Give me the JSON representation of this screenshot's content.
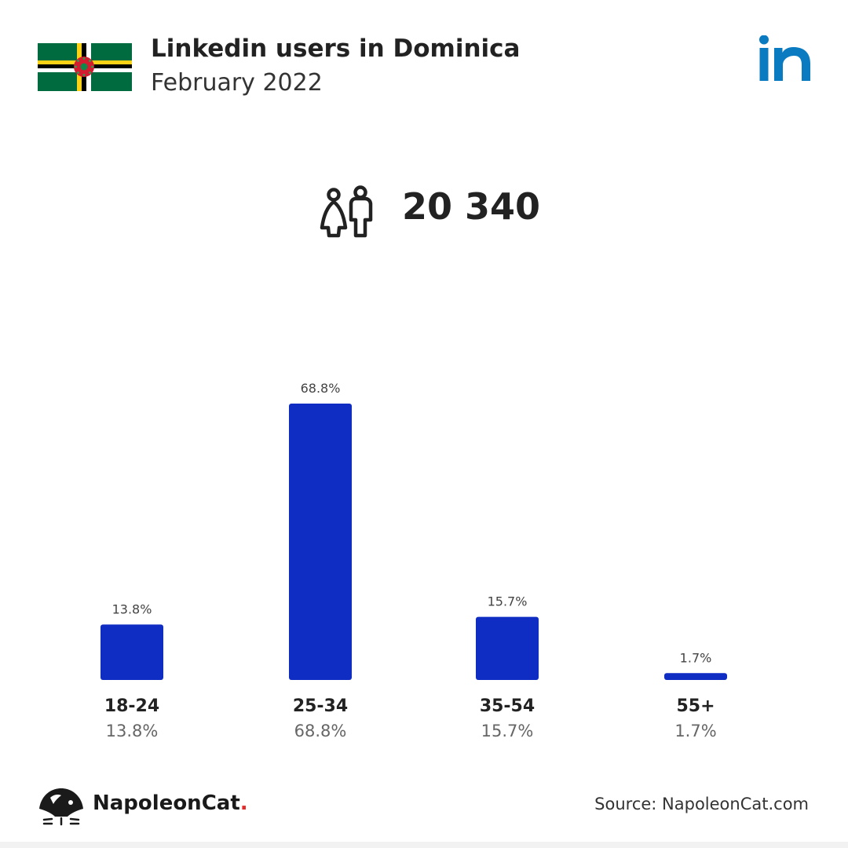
{
  "header": {
    "title": "Linkedin users in Dominica",
    "subtitle": "February 2022"
  },
  "total": {
    "icon": "users-icon",
    "value": "20 340"
  },
  "colors": {
    "bar": "#0f2cc3",
    "linkedin": "#0a7bc1",
    "flag_green": "#006b3f",
    "flag_yellow": "#fcd116",
    "flag_red": "#d41c30"
  },
  "chart_data": {
    "type": "bar",
    "categories": [
      "18-24",
      "25-34",
      "35-54",
      "55+"
    ],
    "values": [
      13.8,
      68.8,
      15.7,
      1.7
    ],
    "value_labels": [
      "13.8%",
      "68.8%",
      "15.7%",
      "1.7%"
    ],
    "title": "",
    "xlabel": "",
    "ylabel": "",
    "ylim": [
      0,
      68.8
    ],
    "grid": false,
    "legend": "none"
  },
  "footer": {
    "brand": "NapoleonCat",
    "brand_dot": ".",
    "source": "Source: NapoleonCat.com"
  }
}
